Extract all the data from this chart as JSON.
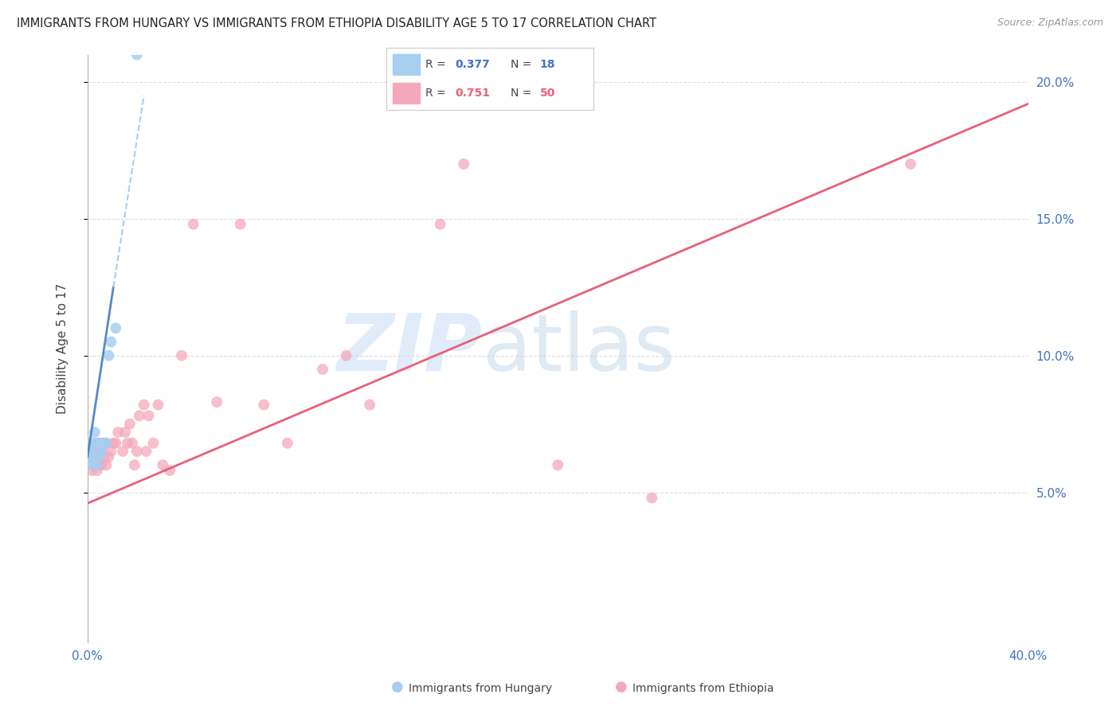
{
  "title": "IMMIGRANTS FROM HUNGARY VS IMMIGRANTS FROM ETHIOPIA DISABILITY AGE 5 TO 17 CORRELATION CHART",
  "source": "Source: ZipAtlas.com",
  "ylabel": "Disability Age 5 to 17",
  "xlim": [
    0.0,
    0.4
  ],
  "ylim": [
    -0.005,
    0.21
  ],
  "y_ticks_right": [
    0.05,
    0.1,
    0.15,
    0.2
  ],
  "y_tick_labels_right": [
    "5.0%",
    "10.0%",
    "15.0%",
    "20.0%"
  ],
  "legend_R1": "0.377",
  "legend_N1": "18",
  "legend_R2": "0.751",
  "legend_N2": "50",
  "color_hungary": "#a8cef0",
  "color_ethiopia": "#f5a8bc",
  "trendline_hungary_solid_color": "#5588cc",
  "trendline_hungary_dash_color": "#aaccee",
  "trendline_ethiopia_color": "#e8607a",
  "hungary_x": [
    0.001,
    0.001,
    0.002,
    0.002,
    0.003,
    0.003,
    0.003,
    0.004,
    0.004,
    0.005,
    0.005,
    0.006,
    0.007,
    0.008,
    0.009,
    0.01,
    0.012,
    0.021
  ],
  "hungary_y": [
    0.063,
    0.068,
    0.06,
    0.065,
    0.063,
    0.068,
    0.072,
    0.06,
    0.068,
    0.063,
    0.068,
    0.065,
    0.068,
    0.068,
    0.1,
    0.105,
    0.11,
    0.21
  ],
  "ethiopia_x": [
    0.001,
    0.001,
    0.002,
    0.002,
    0.003,
    0.003,
    0.004,
    0.004,
    0.005,
    0.005,
    0.006,
    0.006,
    0.007,
    0.007,
    0.008,
    0.008,
    0.009,
    0.01,
    0.011,
    0.012,
    0.013,
    0.015,
    0.016,
    0.017,
    0.018,
    0.019,
    0.02,
    0.021,
    0.022,
    0.024,
    0.025,
    0.026,
    0.028,
    0.03,
    0.032,
    0.035,
    0.04,
    0.045,
    0.055,
    0.065,
    0.075,
    0.085,
    0.1,
    0.11,
    0.12,
    0.15,
    0.16,
    0.2,
    0.24,
    0.35
  ],
  "ethiopia_y": [
    0.063,
    0.068,
    0.058,
    0.065,
    0.06,
    0.068,
    0.058,
    0.062,
    0.06,
    0.065,
    0.06,
    0.065,
    0.062,
    0.068,
    0.06,
    0.068,
    0.063,
    0.065,
    0.068,
    0.068,
    0.072,
    0.065,
    0.072,
    0.068,
    0.075,
    0.068,
    0.06,
    0.065,
    0.078,
    0.082,
    0.065,
    0.078,
    0.068,
    0.082,
    0.06,
    0.058,
    0.1,
    0.148,
    0.083,
    0.148,
    0.082,
    0.068,
    0.095,
    0.1,
    0.082,
    0.148,
    0.17,
    0.06,
    0.048,
    0.17
  ],
  "ethiopia_trendline_x0": 0.0,
  "ethiopia_trendline_y0": 0.046,
  "ethiopia_trendline_x1": 0.4,
  "ethiopia_trendline_y1": 0.192,
  "hungary_trendline_solid_x0": 0.0,
  "hungary_trendline_solid_y0": 0.063,
  "hungary_trendline_solid_x1": 0.011,
  "hungary_trendline_solid_y1": 0.125,
  "hungary_trendline_dash_x0": 0.011,
  "hungary_trendline_dash_y0": 0.125,
  "hungary_trendline_dash_x1": 0.024,
  "hungary_trendline_dash_y1": 0.195
}
